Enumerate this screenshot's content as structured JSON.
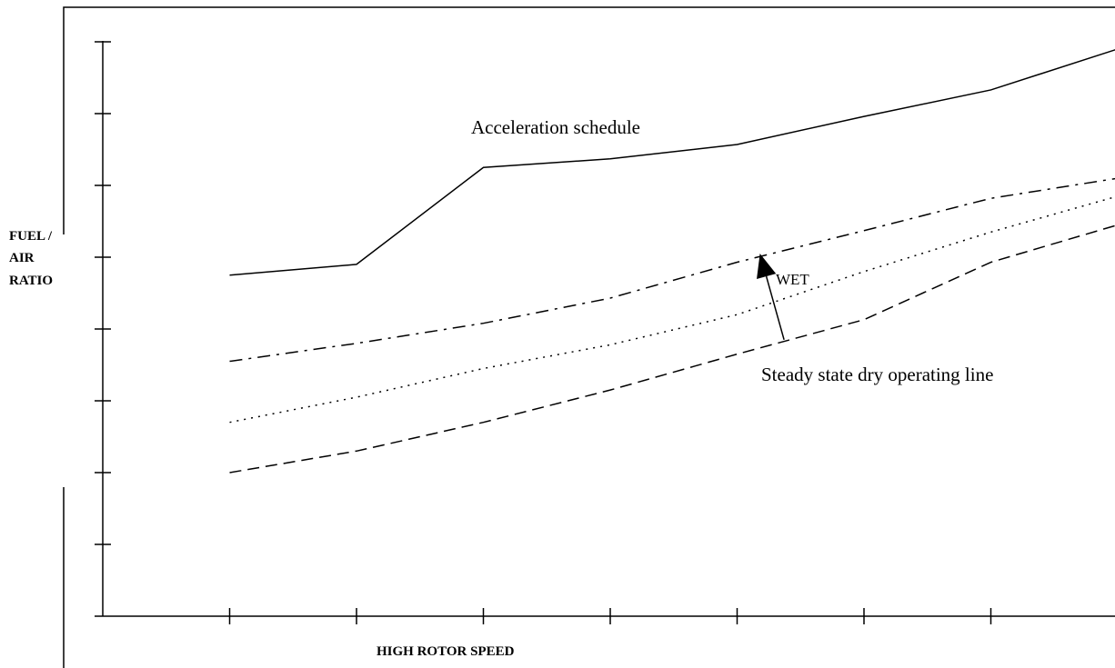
{
  "chart_data": {
    "type": "line",
    "title": "",
    "xlabel": "HIGH ROTOR SPEED",
    "ylabel_lines": [
      "FUEL /",
      "AIR",
      "RATIO"
    ],
    "x_tick_count": 8,
    "y_tick_count": 8,
    "xlim": [
      0,
      8
    ],
    "ylim": [
      0,
      8
    ],
    "grid": false,
    "legend": "none",
    "series": [
      {
        "key": "acceleration",
        "style": "solid",
        "x": [
          1,
          2,
          3,
          4,
          5,
          6,
          7,
          8
        ],
        "y": [
          4.75,
          4.9,
          6.25,
          6.37,
          6.57,
          6.96,
          7.33,
          7.9
        ]
      },
      {
        "key": "wet",
        "style": "dashdot",
        "x": [
          1,
          2,
          3,
          4,
          5,
          6,
          7,
          8
        ],
        "y": [
          3.55,
          3.8,
          4.08,
          4.43,
          4.93,
          5.37,
          5.82,
          6.1
        ]
      },
      {
        "key": "dotted",
        "style": "dotted",
        "x": [
          1,
          2,
          3,
          4,
          5,
          6,
          7,
          8
        ],
        "y": [
          2.7,
          3.05,
          3.45,
          3.78,
          4.2,
          4.8,
          5.35,
          5.85
        ]
      },
      {
        "key": "dry",
        "style": "dashed",
        "x": [
          1,
          2,
          3,
          4,
          5,
          6,
          7,
          8
        ],
        "y": [
          2.0,
          2.3,
          2.7,
          3.15,
          3.65,
          4.13,
          4.93,
          5.45
        ]
      }
    ],
    "annotations": {
      "acceleration": "Acceleration schedule",
      "wet": "WET",
      "dry": "Steady state dry operating line"
    },
    "arrow": {
      "from": [
        5.37,
        3.85
      ],
      "to": [
        5.18,
        5.05
      ]
    }
  }
}
